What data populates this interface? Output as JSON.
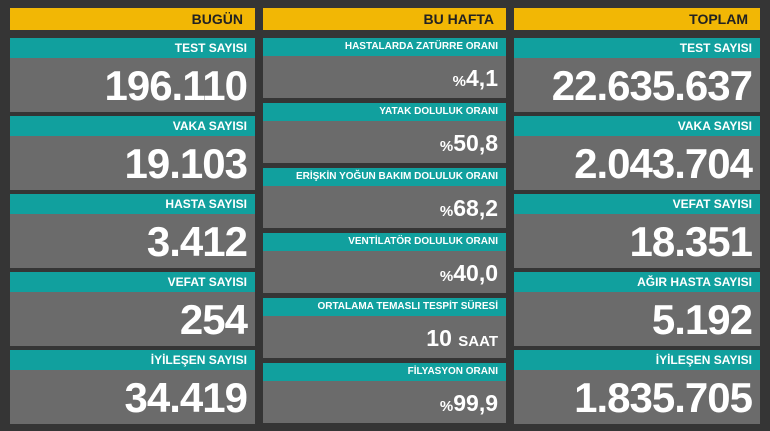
{
  "columns": [
    {
      "header": "BUGÜN",
      "items": [
        {
          "label": "TEST SAYISI",
          "value": "196.110"
        },
        {
          "label": "VAKA SAYISI",
          "value": "19.103"
        },
        {
          "label": "HASTA SAYISI",
          "value": "3.412"
        },
        {
          "label": "VEFAT SAYISI",
          "value": "254"
        },
        {
          "label": "İYİLEŞEN SAYISI",
          "value": "34.419"
        }
      ]
    },
    {
      "header": "BU HAFTA",
      "items": [
        {
          "label": "HASTALARDA ZATÜRRE ORANI",
          "prefix": "%",
          "value": "4,1"
        },
        {
          "label": "YATAK DOLULUK ORANI",
          "prefix": "%",
          "value": "50,8"
        },
        {
          "label": "ERİŞKİN YOĞUN BAKIM DOLULUK ORANI",
          "prefix": "%",
          "value": "68,2"
        },
        {
          "label": "VENTİLATÖR DOLULUK ORANI",
          "prefix": "%",
          "value": "40,0"
        },
        {
          "label": "ORTALAMA TEMASLI TESPİT SÜRESİ",
          "value": "10",
          "suffix": "SAAT"
        },
        {
          "label": "FİLYASYON ORANI",
          "prefix": "%",
          "value": "99,9"
        }
      ]
    },
    {
      "header": "TOPLAM",
      "items": [
        {
          "label": "TEST SAYISI",
          "value": "22.635.637"
        },
        {
          "label": "VAKA SAYISI",
          "value": "2.043.704"
        },
        {
          "label": "VEFAT SAYISI",
          "value": "18.351"
        },
        {
          "label": "AĞIR HASTA SAYISI",
          "value": "5.192"
        },
        {
          "label": "İYİLEŞEN SAYISI",
          "value": "1.835.705"
        }
      ]
    }
  ]
}
